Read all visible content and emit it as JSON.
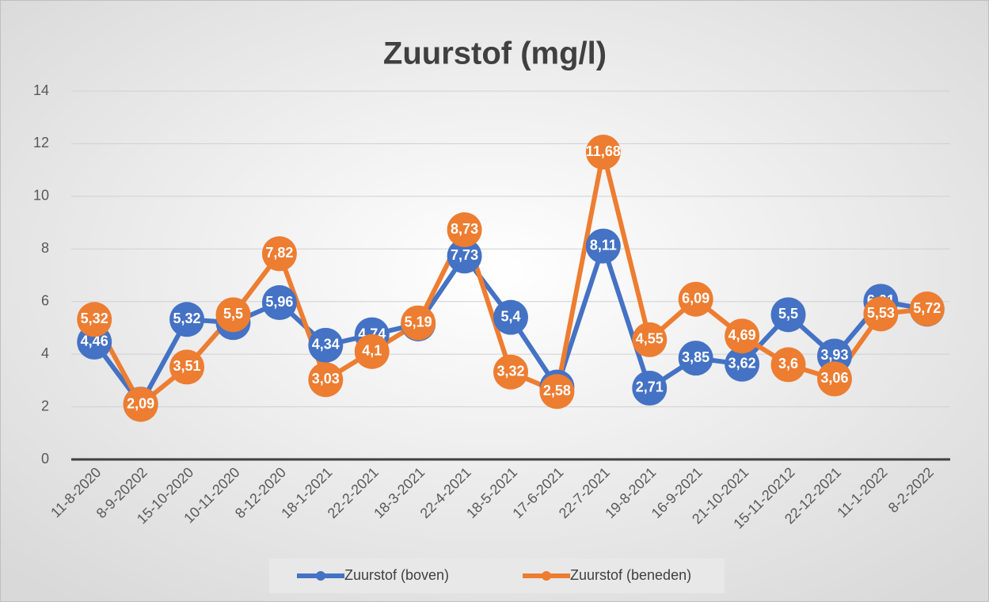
{
  "chart_data": {
    "type": "line",
    "title": "Zuurstof (mg/l)",
    "categories": [
      "11-8-2020",
      "8-9-20202",
      "15-10-2020",
      "10-11-2020",
      "8-12-2020",
      "18-1-2021",
      "22-2-2021",
      "18-3-2021",
      "22-4-2021",
      "18-5-2021",
      "17-6-2021",
      "22-7-2021",
      "19-8-2021",
      "16-9-2021",
      "21-10-2021",
      "15-11-20212",
      "22-12-2021",
      "11-1-2022",
      "8-2-2022"
    ],
    "series": [
      {
        "name": "Zuurstof (boven)",
        "color": "#4472c4",
        "values": [
          4.46,
          2.1,
          5.32,
          5.2,
          5.96,
          4.34,
          4.74,
          5.15,
          7.73,
          5.4,
          2.75,
          8.11,
          2.71,
          3.85,
          3.62,
          5.5,
          3.93,
          6.01,
          5.71
        ],
        "value_labels": [
          "4,46",
          "2,1",
          "5,32",
          "5,2",
          "5,96",
          "4,34",
          "4,74",
          "5,15",
          "7,73",
          "5,4",
          "2,75",
          "8,11",
          "2,71",
          "3,85",
          "3,62",
          "5,5",
          "3,93",
          "6,01",
          "5,71"
        ]
      },
      {
        "name": "Zuurstof (beneden)",
        "color": "#ed7d31",
        "values": [
          5.32,
          2.09,
          3.51,
          5.5,
          7.82,
          3.03,
          4.1,
          5.19,
          8.73,
          3.32,
          2.58,
          11.68,
          4.55,
          6.09,
          4.69,
          3.6,
          3.06,
          5.53,
          5.72
        ],
        "value_labels": [
          "5,32",
          "2,09",
          "3,51",
          "5,5",
          "7,82",
          "3,03",
          "4,1",
          "5,19",
          "8,73",
          "3,32",
          "2,58",
          "11,68",
          "4,55",
          "6,09",
          "4,69",
          "3,6",
          "3,06",
          "5,53",
          "5,72"
        ]
      }
    ],
    "ylim": [
      0,
      14
    ],
    "yticks": [
      0,
      2,
      4,
      6,
      8,
      10,
      12,
      14
    ],
    "grid": true,
    "legend": "bottom"
  }
}
